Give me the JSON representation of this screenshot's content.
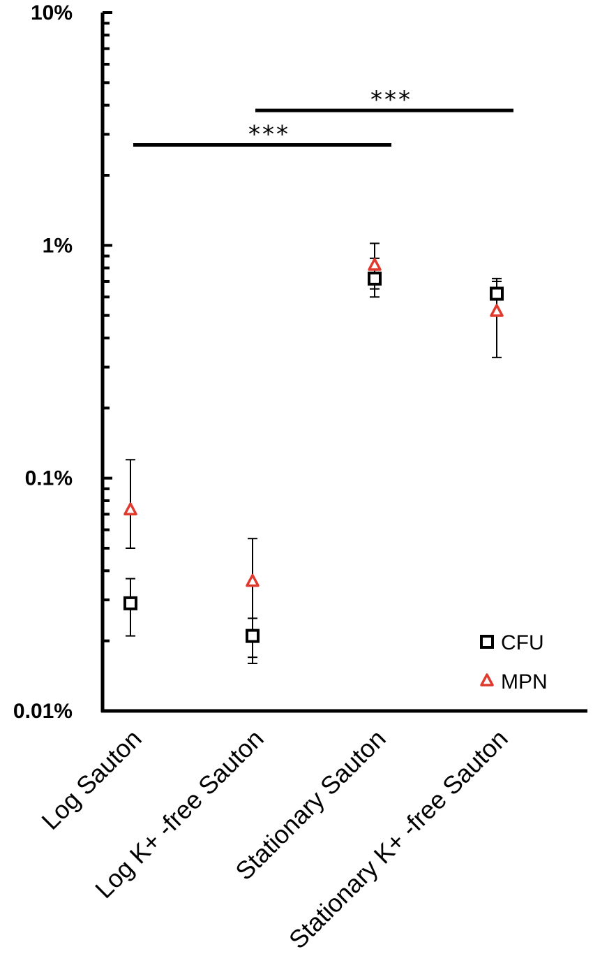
{
  "chart_data": {
    "type": "scatter",
    "title": "",
    "xlabel": "",
    "ylabel": "",
    "yscale": "log",
    "ylim": [
      0.01,
      10
    ],
    "y_tick_values": [
      0.01,
      0.1,
      1,
      10
    ],
    "y_tick_labels": [
      "0.01%",
      "0.1%",
      "1%",
      "10%"
    ],
    "categories": [
      "Log Sauton",
      "Log K+ -free Sauton",
      "Stationary Sauton",
      "Stationary K+ -free Sauton"
    ],
    "series": [
      {
        "name": "CFU",
        "marker": "open-square",
        "color": "#000000",
        "values": [
          0.029,
          0.021,
          0.72,
          0.62
        ],
        "err_low": [
          0.021,
          0.016,
          0.6,
          0.6
        ],
        "err_high": [
          0.037,
          0.025,
          0.88,
          0.72
        ]
      },
      {
        "name": "MPN",
        "marker": "open-triangle",
        "color": "#e03a2e",
        "values": [
          0.073,
          0.036,
          0.82,
          0.52
        ],
        "err_low": [
          0.05,
          0.017,
          0.65,
          0.33
        ],
        "err_high": [
          0.12,
          0.055,
          1.02,
          0.7
        ]
      }
    ],
    "significance": [
      {
        "from": 0,
        "to": 2,
        "label": "***",
        "y": 2.7
      },
      {
        "from": 1,
        "to": 3,
        "label": "***",
        "y": 3.8
      }
    ],
    "legend_position": "bottom-right",
    "grid": false
  }
}
